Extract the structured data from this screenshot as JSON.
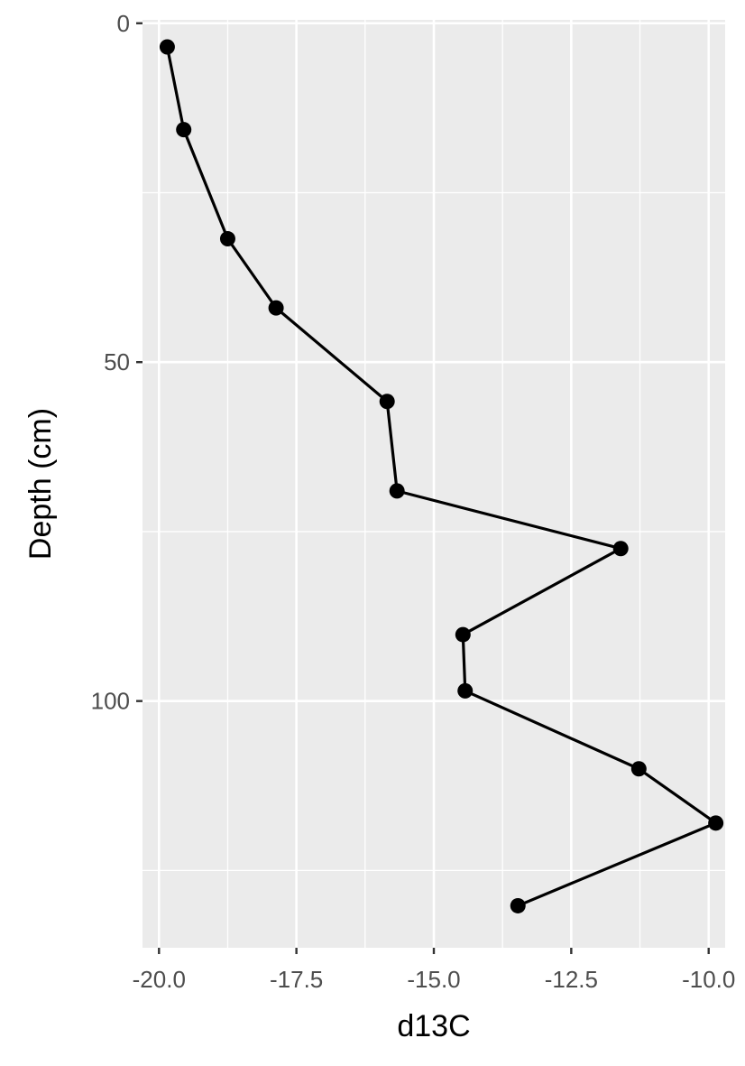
{
  "chart_data": {
    "type": "line",
    "title": "",
    "xlabel": "d13C",
    "ylabel": "Depth (cm)",
    "xlim": [
      -20.3,
      -9.7
    ],
    "ylim": [
      -0.5,
      136.4
    ],
    "y_reversed": true,
    "x_ticks": [
      -20.0,
      -17.5,
      -15.0,
      -12.5,
      -10.0
    ],
    "x_tick_labels": [
      "-20.0",
      "-17.5",
      "-15.0",
      "-12.5",
      "-10.0"
    ],
    "y_ticks": [
      0,
      50,
      100
    ],
    "y_tick_labels": [
      "0",
      "50",
      "100"
    ],
    "grid": true,
    "points": true,
    "series": [
      {
        "x": [
          -19.85,
          -19.55,
          -18.75,
          -17.87,
          -15.85,
          -15.67,
          -11.6,
          -14.47,
          -14.43,
          -11.27,
          -9.87,
          -13.47
        ],
        "y": [
          3.5,
          15.7,
          31.8,
          42.0,
          55.8,
          69.0,
          77.5,
          90.2,
          98.5,
          110.0,
          118.0,
          130.2
        ]
      }
    ],
    "colors": {
      "panel": "#ebebeb",
      "grid": "#ffffff",
      "line": "#000000",
      "text": "#4d4d4d"
    }
  }
}
